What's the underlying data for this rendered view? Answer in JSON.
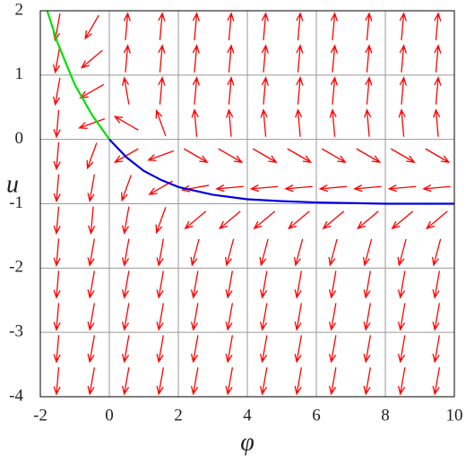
{
  "chart_data": {
    "type": "quiver",
    "xlabel": "φ",
    "ylabel": "u",
    "xlim": [
      -2,
      10
    ],
    "ylim": [
      -4,
      2
    ],
    "xticks": [
      -2,
      0,
      2,
      4,
      6,
      8,
      10
    ],
    "yticks": [
      -4,
      -3,
      -2,
      -1,
      0,
      1,
      2
    ],
    "grid": true,
    "field": {
      "color": "#ff0000",
      "x": [
        -1.5,
        -0.5,
        0.5,
        1.5,
        2.5,
        3.5,
        4.5,
        5.5,
        6.5,
        7.5,
        8.5,
        9.5
      ],
      "y": [
        1.75,
        1.25,
        0.75,
        0.25,
        -0.25,
        -0.75,
        -1.25,
        -1.75,
        -2.25,
        -2.75,
        -3.25,
        -3.75
      ],
      "angles": [
        [
          -100,
          -120,
          85,
          85,
          85,
          85,
          85,
          85,
          85,
          85,
          85,
          85
        ],
        [
          -100,
          -140,
          85,
          85,
          85,
          85,
          85,
          85,
          85,
          85,
          85,
          85
        ],
        [
          -100,
          -150,
          100,
          85,
          85,
          85,
          85,
          85,
          85,
          85,
          85,
          85
        ],
        [
          -95,
          -160,
          150,
          110,
          95,
          95,
          95,
          95,
          95,
          95,
          95,
          95
        ],
        [
          -95,
          -110,
          -150,
          -160,
          -30,
          -30,
          -30,
          -30,
          -30,
          -30,
          -30,
          -30
        ],
        [
          -95,
          -100,
          -110,
          -150,
          -170,
          -175,
          -175,
          -175,
          -175,
          -175,
          -175,
          -175
        ],
        [
          -95,
          -95,
          -100,
          -110,
          -140,
          -140,
          -140,
          -140,
          -140,
          -140,
          -140,
          -140
        ],
        [
          -95,
          -100,
          -100,
          -100,
          -105,
          -105,
          -105,
          -105,
          -105,
          -105,
          -105,
          -105
        ],
        [
          -95,
          -100,
          -100,
          -100,
          -100,
          -100,
          -100,
          -100,
          -100,
          -100,
          -100,
          -100
        ],
        [
          -95,
          -100,
          -100,
          -100,
          -100,
          -100,
          -100,
          -100,
          -100,
          -100,
          -100,
          -100
        ],
        [
          -95,
          -100,
          -100,
          -100,
          -100,
          -100,
          -100,
          -100,
          -100,
          -100,
          -100,
          -100
        ],
        [
          -95,
          -100,
          -100,
          -100,
          -100,
          -100,
          -100,
          -100,
          -100,
          -100,
          -100,
          -100
        ]
      ]
    },
    "series": [
      {
        "color": "#00e000",
        "x": [
          -1.8,
          -1.5,
          -1,
          -0.5,
          0
        ],
        "values": [
          2,
          1.5,
          0.85,
          0.38,
          0
        ]
      },
      {
        "color": "#0000dd",
        "x": [
          0,
          0.5,
          1,
          1.5,
          2,
          3,
          4,
          5,
          6,
          7,
          8,
          9,
          10
        ],
        "values": [
          0,
          -0.28,
          -0.49,
          -0.63,
          -0.74,
          -0.86,
          -0.93,
          -0.96,
          -0.98,
          -0.99,
          -1,
          -1,
          -1
        ]
      }
    ]
  }
}
